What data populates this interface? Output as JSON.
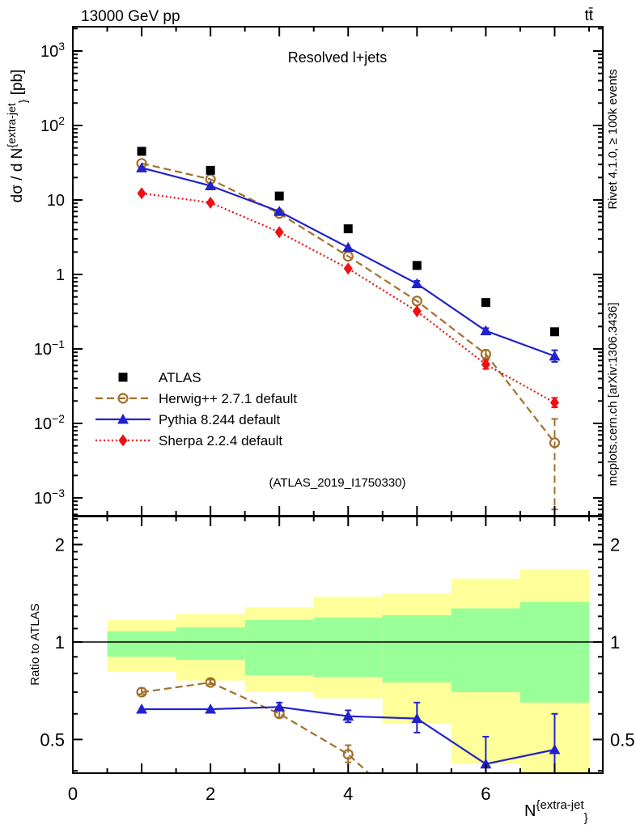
{
  "header": {
    "left": "13000 GeV pp",
    "right": "tt̄"
  },
  "titles": {
    "panel": "Resolved l+jets",
    "watermark": "(ATLAS_2019_I1750330)"
  },
  "side_notes": {
    "top": "Rivet 4.1.0, ≥ 100k events",
    "bottom": "mcplots.cern.ch [arXiv:1306.3436]"
  },
  "axis_labels": {
    "y_main_prefix": "dσ / d N",
    "y_main_sup": "{extra-jet",
    "y_main_close": "}",
    "y_main_suffix": " [pb]",
    "x_prefix": "N",
    "x_sup": "{extra-jet",
    "x_close": "}",
    "ratio": "Ratio to ATLAS"
  },
  "colors": {
    "atlas": "#000000",
    "herwig": "#a2702c",
    "pythia": "#2222cc",
    "sherpa": "#ee1111",
    "band_yellow": "#ffff99",
    "band_green": "#99ff99",
    "notes": "#999999",
    "watermark": "#aaaaaa"
  },
  "legend": [
    {
      "key": "atlas",
      "label": "ATLAS"
    },
    {
      "key": "herwig",
      "label": "Herwig++ 2.7.1 default"
    },
    {
      "key": "pythia",
      "label": "Pythia 8.244 default"
    },
    {
      "key": "sherpa",
      "label": "Sherpa 2.2.4 default"
    }
  ],
  "chart_data": [
    {
      "type": "line",
      "title": "Resolved l+jets",
      "xlabel": "N^{extra-jet}",
      "ylabel": "dσ / d N^{extra-jet} [pb]",
      "ylog": true,
      "ylim": [
        0.001,
        1000
      ],
      "xlim": [
        0,
        7.7
      ],
      "x_ticks": [
        0,
        2,
        4,
        6
      ],
      "y_tick_exponents": [
        3,
        2,
        1,
        0,
        -1,
        -2,
        -3
      ],
      "x": [
        1,
        2,
        3,
        4,
        5,
        6,
        7
      ],
      "series": [
        {
          "key": "atlas",
          "name": "ATLAS",
          "marker": "square",
          "line": "none",
          "values": [
            45,
            25,
            11.3,
            4.1,
            1.32,
            0.42,
            0.17
          ],
          "err_lo": [
            null,
            null,
            null,
            null,
            null,
            null,
            null
          ],
          "err_hi": [
            null,
            null,
            null,
            null,
            null,
            null,
            null
          ]
        },
        {
          "key": "herwig",
          "name": "Herwig++ 2.7.1 default",
          "marker": "circle-open",
          "line": "dashed",
          "values": [
            31,
            19,
            6.6,
            1.75,
            0.44,
            0.085,
            0.0055
          ],
          "err_lo": [
            null,
            null,
            null,
            null,
            null,
            0.075,
            0.0007
          ],
          "err_hi": [
            null,
            null,
            null,
            null,
            null,
            0.096,
            0.0115
          ]
        },
        {
          "key": "pythia",
          "name": "Pythia 8.244 default",
          "marker": "triangle",
          "line": "solid",
          "values": [
            27,
            15.5,
            7.0,
            2.3,
            0.75,
            0.175,
            0.08
          ],
          "err_lo": [
            null,
            null,
            null,
            null,
            0.69,
            0.16,
            0.067
          ],
          "err_hi": [
            null,
            null,
            null,
            null,
            0.82,
            0.19,
            0.096
          ]
        },
        {
          "key": "sherpa",
          "name": "Sherpa 2.2.4 default",
          "marker": "diamond",
          "line": "dotted",
          "values": [
            12.3,
            9.2,
            3.7,
            1.2,
            0.32,
            0.062,
            0.019
          ],
          "err_lo": [
            null,
            null,
            null,
            null,
            null,
            0.054,
            0.0165
          ],
          "err_hi": [
            null,
            null,
            null,
            null,
            null,
            0.071,
            0.022
          ]
        }
      ]
    },
    {
      "type": "ratio",
      "ylabel": "Ratio to ATLAS",
      "ylog": true,
      "ylim": [
        0.394,
        2.44
      ],
      "ratio_ticks": [
        2,
        1,
        0.5
      ],
      "bands": {
        "bin_edges": [
          0.5,
          1.5,
          2.5,
          3.5,
          4.5,
          5.5,
          6.5,
          7.5
        ],
        "yellow_hi": [
          1.17,
          1.22,
          1.28,
          1.38,
          1.41,
          1.57,
          1.68
        ],
        "yellow_lo": [
          0.81,
          0.76,
          0.7,
          0.67,
          0.56,
          0.42,
          0.39
        ],
        "green_hi": [
          1.08,
          1.11,
          1.17,
          1.19,
          1.21,
          1.27,
          1.33
        ],
        "green_lo": [
          0.9,
          0.88,
          0.79,
          0.78,
          0.75,
          0.7,
          0.65
        ]
      },
      "series": [
        {
          "key": "herwig",
          "name": "Herwig++ 2.7.1 default",
          "x": [
            1,
            2,
            3,
            4
          ],
          "values": [
            0.7,
            0.75,
            0.6,
            0.45
          ],
          "err_lo": [
            0.69,
            0.74,
            0.585,
            0.425
          ],
          "err_hi": [
            0.72,
            0.765,
            0.62,
            0.48
          ],
          "line_exit": {
            "x": 4.9,
            "value": 0.3
          }
        },
        {
          "key": "pythia",
          "name": "Pythia 8.244 default",
          "x": [
            1,
            2,
            3,
            4,
            5,
            6,
            7
          ],
          "values": [
            0.62,
            0.62,
            0.63,
            0.59,
            0.58,
            0.42,
            0.465
          ],
          "err_lo": [
            null,
            null,
            0.615,
            0.565,
            0.525,
            0.39,
            0.39
          ],
          "err_hi": [
            null,
            null,
            0.65,
            0.615,
            0.65,
            0.51,
            0.6
          ]
        }
      ]
    }
  ]
}
